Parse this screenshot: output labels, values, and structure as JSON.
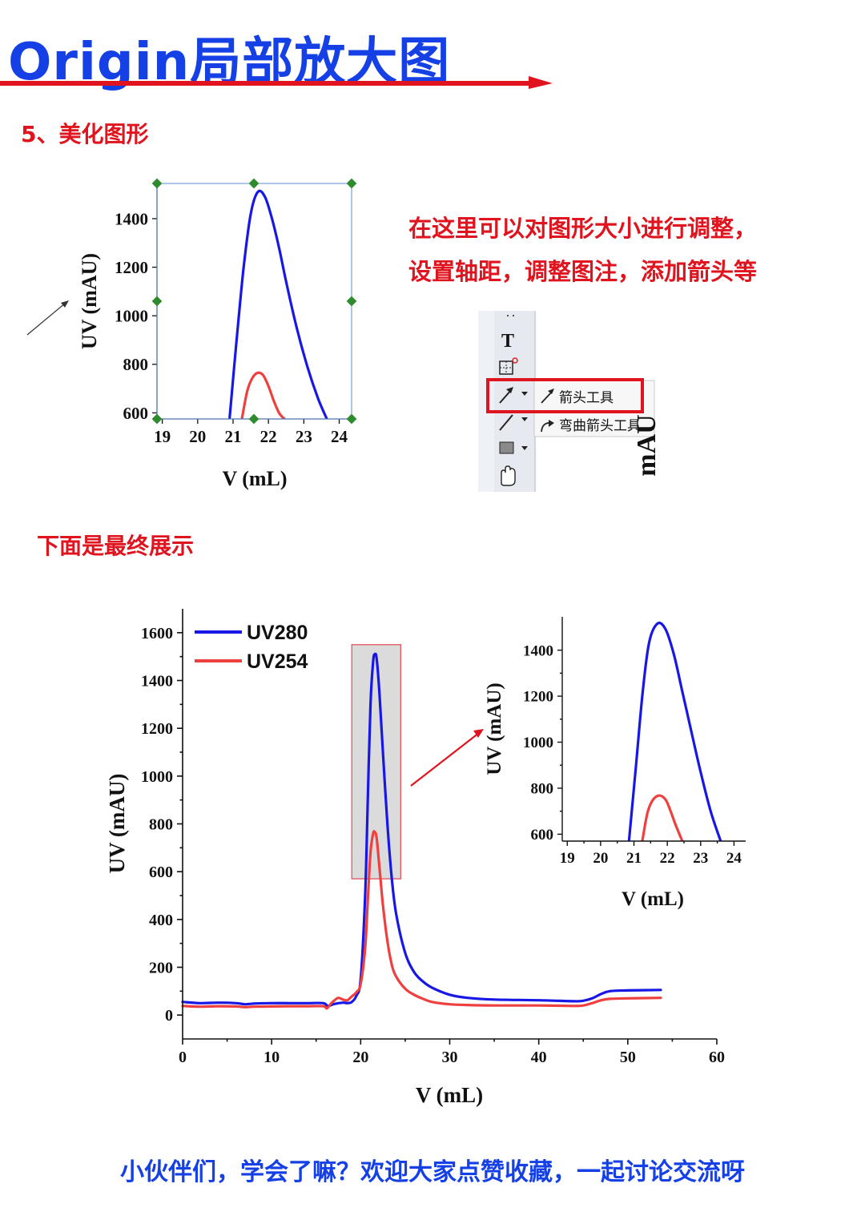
{
  "title": "Origin局部放大图",
  "colors": {
    "title": "#1540e6",
    "accent": "#e0141e",
    "uv280": "#1818e6",
    "uv254": "#ef4040"
  },
  "step_heading": "5、美化图形",
  "note_lines": [
    "在这里可以对图形大小进行调整，",
    "设置轴距，调整图注，添加箭头等"
  ],
  "toolbar": {
    "text_tool_glyph": "T",
    "menu": {
      "arrow_tool_label": "箭头工具",
      "curved_arrow_tool_label": "弯曲箭头工具"
    },
    "side_strip_text": "mAU"
  },
  "final_heading": "下面是最终展示",
  "footer": "小伙伴们，学会了嘛？欢迎大家点赞收藏，一起讨论交流呀",
  "chart_data": [
    {
      "id": "step5_inset_preview",
      "type": "line",
      "xlabel": "V (mL)",
      "ylabel": "UV (mAU)",
      "xlim": [
        18.85,
        24.35
      ],
      "ylim": [
        575,
        1545
      ],
      "xticks": [
        19,
        20,
        21,
        22,
        23,
        24
      ],
      "yticks": [
        600,
        800,
        1000,
        1200,
        1400
      ],
      "series": [
        {
          "color": "#1818e6",
          "x": [
            20.9,
            21.1,
            21.3,
            21.5,
            21.7,
            21.9,
            22.1,
            22.3,
            22.5,
            22.8,
            23.1,
            23.4,
            23.65
          ],
          "y": [
            575,
            900,
            1200,
            1420,
            1510,
            1490,
            1400,
            1280,
            1140,
            950,
            790,
            660,
            575
          ]
        },
        {
          "color": "#ef4040",
          "x": [
            21.25,
            21.4,
            21.55,
            21.7,
            21.85,
            22.0,
            22.15,
            22.3,
            22.45
          ],
          "y": [
            575,
            690,
            745,
            765,
            755,
            710,
            650,
            600,
            575
          ]
        }
      ]
    },
    {
      "id": "final_main_chart",
      "type": "line",
      "xlabel": "V (mL)",
      "ylabel": "UV (mAU)",
      "xlim": [
        0,
        60
      ],
      "ylim": [
        -100,
        1700
      ],
      "xticks": [
        0,
        10,
        20,
        30,
        40,
        50,
        60
      ],
      "yticks": [
        0,
        200,
        400,
        600,
        800,
        1000,
        1200,
        1400,
        1600
      ],
      "legend": "top-left",
      "zoom_region": {
        "x": [
          19,
          24.5
        ],
        "y": [
          570,
          1550
        ]
      },
      "series": [
        {
          "name": "UV280",
          "color": "#1818e6",
          "x": [
            0,
            2,
            4,
            6,
            7,
            8,
            10,
            12,
            14,
            15.8,
            16.3,
            17,
            18,
            18.5,
            19,
            19.5,
            20,
            20.5,
            20.8,
            21.1,
            21.4,
            21.6,
            21.8,
            22.1,
            22.5,
            23,
            23.5,
            24,
            25,
            26,
            27,
            28,
            30,
            32,
            35,
            40,
            44,
            45,
            46,
            47,
            48,
            50,
            53.7
          ],
          "y": [
            55,
            50,
            52,
            50,
            45,
            48,
            50,
            50,
            50,
            50,
            38,
            46,
            52,
            50,
            55,
            80,
            150,
            500,
            900,
            1300,
            1480,
            1510,
            1490,
            1350,
            1100,
            800,
            570,
            420,
            260,
            180,
            140,
            115,
            85,
            72,
            65,
            62,
            58,
            60,
            70,
            88,
            100,
            103,
            105
          ]
        },
        {
          "name": "UV254",
          "color": "#ef4040",
          "x": [
            0,
            2,
            4,
            6,
            7,
            8,
            10,
            12,
            14,
            15.8,
            16.2,
            16.6,
            17,
            17.5,
            18,
            18.5,
            19,
            19.5,
            20,
            20.5,
            20.8,
            21.1,
            21.4,
            21.6,
            21.8,
            22.1,
            22.5,
            23,
            23.5,
            24,
            25,
            26,
            27,
            28,
            30,
            32,
            35,
            40,
            44,
            45,
            46,
            47,
            48,
            50,
            53.7
          ],
          "y": [
            38,
            35,
            37,
            36,
            33,
            35,
            36,
            37,
            37,
            37,
            28,
            45,
            60,
            72,
            65,
            62,
            78,
            95,
            130,
            280,
            480,
            680,
            760,
            765,
            740,
            620,
            460,
            310,
            210,
            160,
            110,
            85,
            68,
            55,
            45,
            42,
            40,
            40,
            38,
            40,
            50,
            62,
            68,
            70,
            72
          ]
        }
      ]
    },
    {
      "id": "final_inset_chart",
      "type": "line",
      "xlabel": "V (mL)",
      "ylabel": "UV (mAU)",
      "xlim": [
        18.85,
        24.35
      ],
      "ylim": [
        570,
        1545
      ],
      "xticks": [
        19,
        20,
        21,
        22,
        23,
        24
      ],
      "yticks": [
        600,
        800,
        1000,
        1200,
        1400
      ],
      "series": [
        {
          "color": "#1818e6",
          "x": [
            20.85,
            21.05,
            21.25,
            21.45,
            21.7,
            21.95,
            22.2,
            22.45,
            22.7,
            23.0,
            23.3,
            23.6
          ],
          "y": [
            570,
            880,
            1200,
            1430,
            1515,
            1490,
            1380,
            1220,
            1060,
            870,
            700,
            570
          ]
        },
        {
          "color": "#ef4040",
          "x": [
            21.25,
            21.4,
            21.55,
            21.75,
            21.95,
            22.1,
            22.25,
            22.45
          ],
          "y": [
            570,
            690,
            745,
            768,
            750,
            700,
            640,
            570
          ]
        }
      ]
    }
  ]
}
